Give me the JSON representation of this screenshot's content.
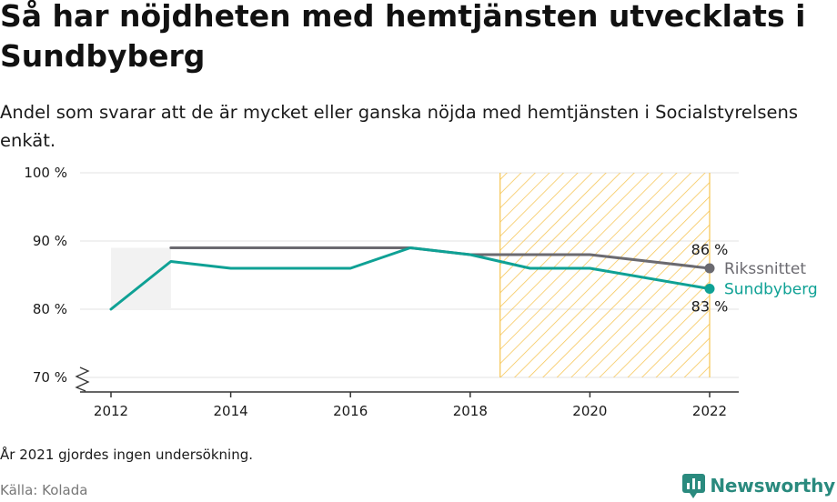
{
  "title": "Så har nöjdheten med hemtjänsten utvecklats i Sundbyberg",
  "subtitle": "Andel som svarar att de är mycket eller ganska nöjda med hemtjänsten i Socialstyrelsens enkät.",
  "note": "År 2021 gjordes ingen undersökning.",
  "source": "Källa: Kolada",
  "brand": "Newsworthy",
  "chart_data": {
    "type": "line",
    "x": [
      2012,
      2013,
      2014,
      2015,
      2016,
      2017,
      2018,
      2019,
      2020,
      2022
    ],
    "xticks": [
      2012,
      2014,
      2016,
      2018,
      2020,
      2022
    ],
    "xtick_labels": [
      "2012",
      "2014",
      "2016",
      "2018",
      "2020",
      "2022"
    ],
    "yticks": [
      70,
      80,
      90,
      100
    ],
    "ytick_labels": [
      "70 %",
      "80 %",
      "90 %",
      "100 %"
    ],
    "ylim": [
      70,
      100
    ],
    "xlim": [
      2012,
      2022
    ],
    "grid": true,
    "highlight_range": [
      2018.5,
      2022
    ],
    "series": [
      {
        "name": "Rikssnittet",
        "color": "#6b6a70",
        "values": [
          null,
          89,
          89,
          89,
          89,
          89,
          88,
          88,
          88,
          86
        ],
        "end_label": "86 %"
      },
      {
        "name": "Sundbyberg",
        "color": "#0fa195",
        "values": [
          80,
          87,
          86,
          86,
          86,
          89,
          88,
          86,
          86,
          83
        ],
        "end_label": "83 %"
      }
    ],
    "colors": {
      "grid": "#e3e3e3",
      "axis": "#333333",
      "highlight": "#f6c451",
      "shade": "#f2f2f2"
    }
  }
}
